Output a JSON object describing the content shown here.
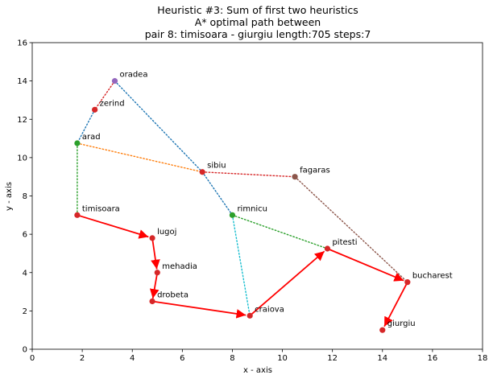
{
  "chart_data": {
    "type": "line",
    "title_lines": [
      "Heuristic #3: Sum of first two heuristics",
      "A* optimal path between",
      "pair 8: timisoara - giurgiu length:705 steps:7"
    ],
    "xlabel": "x - axis",
    "ylabel": "y - axis",
    "xlim": [
      0,
      18
    ],
    "ylim": [
      0,
      16
    ],
    "xticks": [
      0,
      2,
      4,
      6,
      8,
      10,
      12,
      14,
      16,
      18
    ],
    "yticks": [
      0,
      2,
      4,
      6,
      8,
      10,
      12,
      14,
      16
    ],
    "grid": false,
    "nodes": [
      {
        "name": "oradea",
        "x": 3.3,
        "y": 14.0,
        "color": "#9467bd"
      },
      {
        "name": "zerind",
        "x": 2.5,
        "y": 12.5,
        "color": "#d62728"
      },
      {
        "name": "arad",
        "x": 1.8,
        "y": 10.75,
        "color": "#2ca02c"
      },
      {
        "name": "sibiu",
        "x": 6.8,
        "y": 9.25,
        "color": "#d62728"
      },
      {
        "name": "fagaras",
        "x": 10.5,
        "y": 9.0,
        "color": "#8c564b"
      },
      {
        "name": "timisoara",
        "x": 1.8,
        "y": 7.0,
        "color": "#d62728"
      },
      {
        "name": "rimnicu",
        "x": 8.0,
        "y": 7.0,
        "color": "#2ca02c"
      },
      {
        "name": "lugoj",
        "x": 4.8,
        "y": 5.8,
        "color": "#d62728"
      },
      {
        "name": "pitesti",
        "x": 11.8,
        "y": 5.25,
        "color": "#d62728"
      },
      {
        "name": "mehadia",
        "x": 5.0,
        "y": 4.0,
        "color": "#d62728"
      },
      {
        "name": "bucharest",
        "x": 15.0,
        "y": 3.5,
        "color": "#d62728"
      },
      {
        "name": "drobeta",
        "x": 4.8,
        "y": 2.5,
        "color": "#d62728"
      },
      {
        "name": "craiova",
        "x": 8.7,
        "y": 1.75,
        "color": "#d62728"
      },
      {
        "name": "giurgiu",
        "x": 14.0,
        "y": 1.0,
        "color": "#d62728"
      }
    ],
    "edges": [
      {
        "from": "oradea",
        "to": "zerind",
        "color": "#d62728"
      },
      {
        "from": "zerind",
        "to": "arad",
        "color": "#1f77b4"
      },
      {
        "from": "oradea",
        "to": "sibiu",
        "color": "#1f77b4"
      },
      {
        "from": "arad",
        "to": "sibiu",
        "color": "#ff7f0e"
      },
      {
        "from": "arad",
        "to": "timisoara",
        "color": "#2ca02c"
      },
      {
        "from": "sibiu",
        "to": "fagaras",
        "color": "#d62728"
      },
      {
        "from": "sibiu",
        "to": "rimnicu",
        "color": "#1f77b4"
      },
      {
        "from": "fagaras",
        "to": "bucharest",
        "color": "#8c564b"
      },
      {
        "from": "rimnicu",
        "to": "pitesti",
        "color": "#2ca02c"
      },
      {
        "from": "rimnicu",
        "to": "craiova",
        "color": "#17becf"
      }
    ],
    "path": [
      "timisoara",
      "lugoj",
      "mehadia",
      "drobeta",
      "craiova",
      "pitesti",
      "bucharest",
      "giurgiu"
    ],
    "path_color": "#ff0000"
  }
}
